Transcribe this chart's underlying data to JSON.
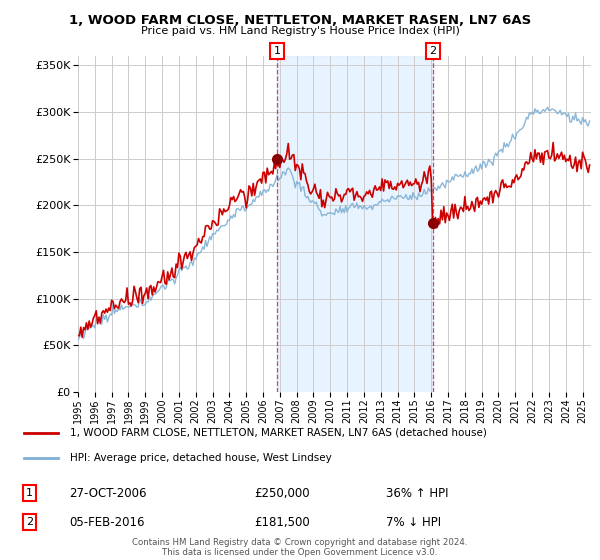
{
  "title": "1, WOOD FARM CLOSE, NETTLETON, MARKET RASEN, LN7 6AS",
  "subtitle": "Price paid vs. HM Land Registry's House Price Index (HPI)",
  "legend_line1": "1, WOOD FARM CLOSE, NETTLETON, MARKET RASEN, LN7 6AS (detached house)",
  "legend_line2": "HPI: Average price, detached house, West Lindsey",
  "transaction1_date": "27-OCT-2006",
  "transaction1_price": "£250,000",
  "transaction1_hpi": "36% ↑ HPI",
  "transaction1_x": 2006.83,
  "transaction1_y": 250000,
  "transaction2_date": "05-FEB-2016",
  "transaction2_price": "£181,500",
  "transaction2_hpi": "7% ↓ HPI",
  "transaction2_x": 2016.09,
  "transaction2_y": 181500,
  "footer": "Contains HM Land Registry data © Crown copyright and database right 2024.\nThis data is licensed under the Open Government Licence v3.0.",
  "ylim": [
    0,
    360000
  ],
  "xlim_start": 1995.0,
  "xlim_end": 2025.5,
  "property_color": "#cc0000",
  "hpi_color": "#7fafd4",
  "vline_color": "#cc0000",
  "shade_color": "#ddeeff",
  "background_color": "#ffffff",
  "grid_color": "#cccccc"
}
